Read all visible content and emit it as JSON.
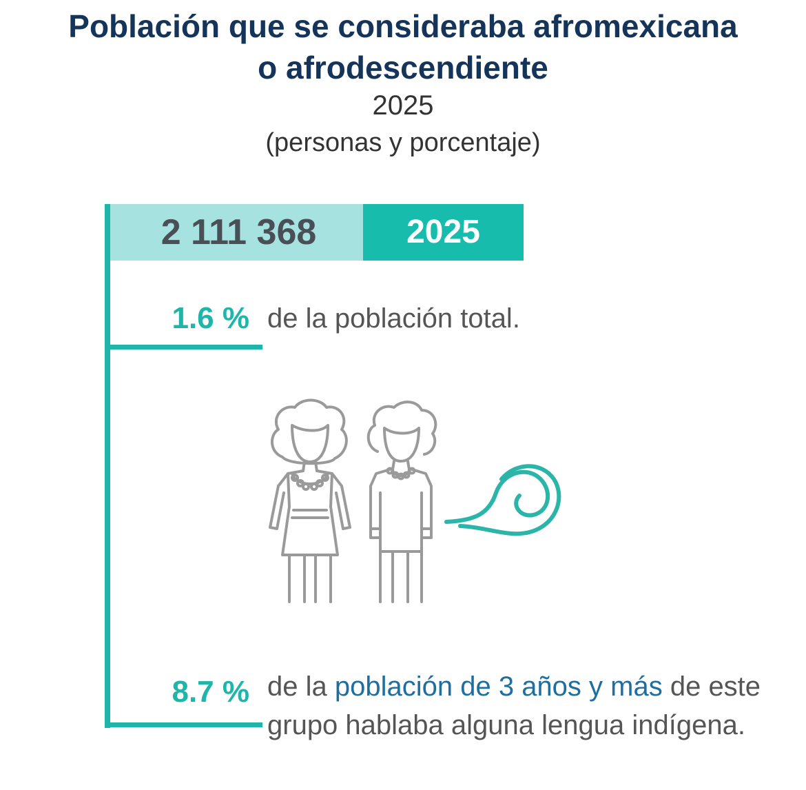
{
  "header": {
    "title_line1": "Población que se consideraba afromexicana",
    "title_line2": "o afrodescendiente",
    "year": "2025",
    "unit": "(personas y porcentaje)"
  },
  "badge": {
    "population": "2 111 368",
    "year": "2025"
  },
  "stats": [
    {
      "percent": "1.6 %",
      "text": "de la población total."
    },
    {
      "percent": "8.7 %",
      "text_prefix": "de la ",
      "text_highlight": "población de 3 años y más",
      "text_suffix": " de este grupo hablaba alguna lengua indígena."
    }
  ],
  "colors": {
    "title": "#15345a",
    "accent": "#1fb5a8",
    "badge_light": "#a6e3e0",
    "badge_dark": "#17bcac",
    "highlight": "#1f6ea0"
  },
  "icons": [
    "woman-icon",
    "man-icon",
    "speech-scroll-icon"
  ]
}
